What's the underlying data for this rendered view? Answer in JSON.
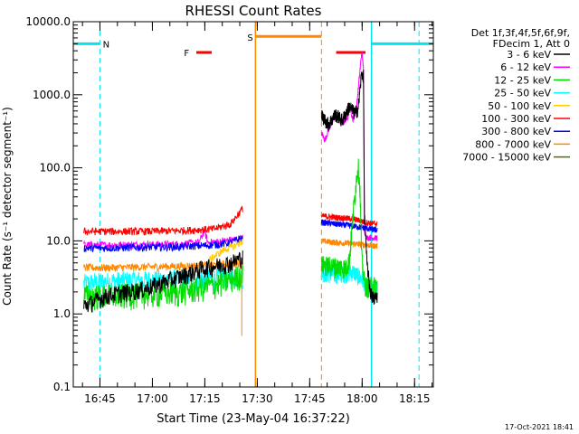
{
  "chart_data": {
    "type": "line",
    "title": "RHESSI Count Rates",
    "xlabel": "Start Time (23-May-04 16:37:22)",
    "ylabel": "Count Rate (s⁻¹ detector segment⁻¹)",
    "x_unit": "minutes after 16:37:22",
    "xlim": [
      0,
      103
    ],
    "ylim": [
      0.1,
      10000
    ],
    "y_scale": "log",
    "x_ticks": [
      {
        "x": 7.63,
        "label": "16:45"
      },
      {
        "x": 22.63,
        "label": "17:00"
      },
      {
        "x": 37.63,
        "label": "17:15"
      },
      {
        "x": 52.63,
        "label": "17:30"
      },
      {
        "x": 67.63,
        "label": "17:45"
      },
      {
        "x": 82.63,
        "label": "18:00"
      },
      {
        "x": 97.63,
        "label": "18:15"
      }
    ],
    "y_ticks": [
      {
        "y": 0.1,
        "label": "0.1"
      },
      {
        "y": 1,
        "label": "1.0"
      },
      {
        "y": 10,
        "label": "10.0"
      },
      {
        "y": 100,
        "label": "100.0"
      },
      {
        "y": 1000,
        "label": "1000.0"
      },
      {
        "y": 10000,
        "label": "10000.0"
      }
    ],
    "legend_header": [
      "Det 1f,3f,4f,5f,6f,9f,",
      "FDecim 1, Att 0"
    ],
    "legend_position": "right",
    "series": [
      {
        "name": "3 - 6 keV",
        "color": "#000000",
        "seg1": [
          [
            3,
            1.3
          ],
          [
            10,
            1.8
          ],
          [
            20,
            2.2
          ],
          [
            30,
            3.2
          ],
          [
            37,
            4.2
          ],
          [
            41,
            4.6
          ],
          [
            45,
            5.0
          ],
          [
            48.5,
            6.0
          ]
        ],
        "seg2": [
          [
            71,
            520
          ],
          [
            73,
            400
          ],
          [
            75,
            540
          ],
          [
            77,
            450
          ],
          [
            79,
            700
          ],
          [
            80.5,
            560
          ],
          [
            81.5,
            650
          ],
          [
            82.5,
            2000
          ],
          [
            83,
            1800
          ],
          [
            83.3,
            22
          ],
          [
            84,
            5
          ],
          [
            85,
            2.0
          ],
          [
            86,
            1.6
          ],
          [
            87,
            1.8
          ]
        ]
      },
      {
        "name": "6 - 12 keV",
        "color": "#ff00ff",
        "seg1": [
          [
            3,
            8.8
          ],
          [
            10,
            8.8
          ],
          [
            20,
            8.9
          ],
          [
            30,
            9.0
          ],
          [
            36,
            9.5
          ],
          [
            37.5,
            14
          ],
          [
            38.5,
            9.5
          ],
          [
            42,
            9.8
          ],
          [
            48.5,
            11
          ]
        ],
        "seg2": [
          [
            71,
            300
          ],
          [
            72,
            240
          ],
          [
            73,
            330
          ],
          [
            75,
            520
          ],
          [
            77,
            400
          ],
          [
            78.5,
            500
          ],
          [
            79,
            700
          ],
          [
            80,
            450
          ],
          [
            81,
            640
          ],
          [
            82.5,
            3800
          ],
          [
            83,
            2500
          ],
          [
            83.3,
            14
          ],
          [
            84,
            11
          ],
          [
            87,
            11
          ]
        ]
      },
      {
        "name": "12 - 25 keV",
        "color": "#00dd00",
        "seg1": [
          [
            3,
            1.8
          ],
          [
            10,
            1.8
          ],
          [
            20,
            1.9
          ],
          [
            30,
            2.0
          ],
          [
            40,
            2.5
          ],
          [
            45,
            3.0
          ],
          [
            48,
            3.5
          ],
          [
            48.5,
            4.5
          ]
        ],
        "seg2": [
          [
            71,
            4.8
          ],
          [
            75,
            4.5
          ],
          [
            78,
            4.3
          ],
          [
            79,
            5.5
          ],
          [
            80,
            22
          ],
          [
            81,
            70
          ],
          [
            81.5,
            110
          ],
          [
            82,
            55
          ],
          [
            82.5,
            6
          ],
          [
            83.3,
            2.6
          ],
          [
            84,
            2.4
          ],
          [
            87,
            2.5
          ]
        ]
      },
      {
        "name": "25 - 50 keV",
        "color": "#00ffff",
        "seg1": [
          [
            3,
            2.6
          ],
          [
            10,
            2.8
          ],
          [
            20,
            2.9
          ],
          [
            30,
            3.0
          ],
          [
            40,
            3.1
          ],
          [
            48.5,
            3.3
          ]
        ],
        "seg2": [
          [
            71,
            3.7
          ],
          [
            75,
            3.5
          ],
          [
            80,
            3.8
          ],
          [
            82,
            3.2
          ],
          [
            83.3,
            2.8
          ],
          [
            84,
            2.3
          ],
          [
            87,
            2.2
          ]
        ]
      },
      {
        "name": "50 - 100 keV",
        "color": "#ffcc00",
        "seg1": [
          [
            38,
            5.0
          ],
          [
            40,
            6.0
          ],
          [
            43,
            7.5
          ],
          [
            46,
            8.5
          ],
          [
            48.5,
            10
          ]
        ],
        "seg2": []
      },
      {
        "name": "100 - 300 keV",
        "color": "#ff0000",
        "seg1": [
          [
            3,
            13.5
          ],
          [
            10,
            13.5
          ],
          [
            20,
            13.5
          ],
          [
            30,
            13.8
          ],
          [
            40,
            14.5
          ],
          [
            45,
            17
          ],
          [
            48.5,
            28
          ]
        ],
        "seg2": [
          [
            71,
            22
          ],
          [
            75,
            21
          ],
          [
            80,
            20
          ],
          [
            82,
            19
          ],
          [
            83.3,
            18
          ],
          [
            87,
            17
          ]
        ]
      },
      {
        "name": "300 - 800 keV",
        "color": "#0000ff",
        "seg1": [
          [
            3,
            8.0
          ],
          [
            10,
            8.0
          ],
          [
            20,
            8.2
          ],
          [
            30,
            8.3
          ],
          [
            40,
            8.8
          ],
          [
            45,
            9.5
          ],
          [
            48.5,
            11
          ]
        ],
        "seg2": [
          [
            71,
            18
          ],
          [
            75,
            17
          ],
          [
            80,
            16
          ],
          [
            83.3,
            15
          ],
          [
            87,
            14
          ]
        ]
      },
      {
        "name": "800 - 7000 keV",
        "color": "#ff8800",
        "seg1": [
          [
            3,
            4.3
          ],
          [
            10,
            4.3
          ],
          [
            20,
            4.4
          ],
          [
            30,
            4.5
          ],
          [
            40,
            4.7
          ],
          [
            48.5,
            5.0
          ]
        ],
        "seg2": [
          [
            71,
            10
          ],
          [
            75,
            9.5
          ],
          [
            80,
            9.2
          ],
          [
            83.3,
            8.8
          ],
          [
            87,
            8.5
          ]
        ]
      },
      {
        "name": "7000 - 15000 keV",
        "color": "#556b00",
        "seg1": [],
        "seg2": []
      }
    ],
    "annotations": {
      "night_label": "N",
      "flare_label": "F",
      "saa_label": "S"
    }
  },
  "footer": {
    "date": "17-Oct-2021 18:41"
  }
}
